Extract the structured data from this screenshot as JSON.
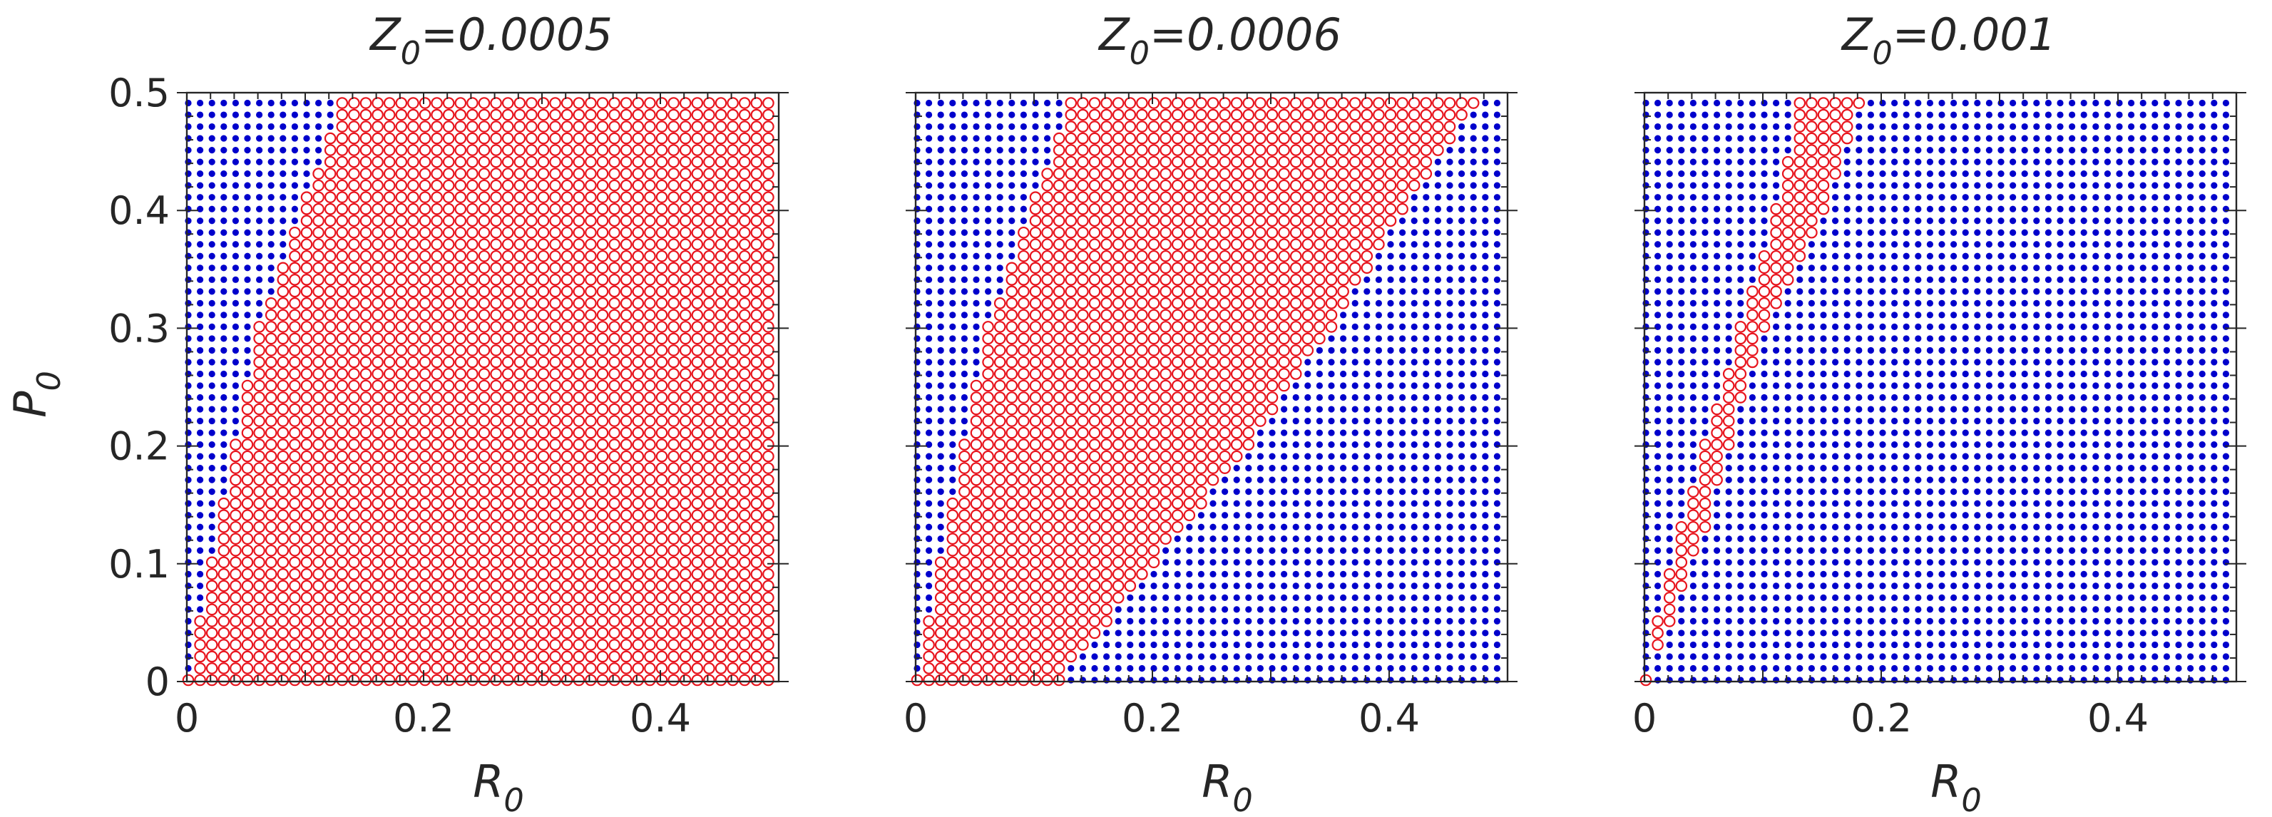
{
  "chart_data": [
    {
      "type": "scatter",
      "title": {
        "symbol": "Z",
        "subscript": "0",
        "rest": "=0.0005"
      },
      "xlabel": {
        "symbol": "R",
        "subscript": "0"
      },
      "ylabel": {
        "symbol": "P",
        "subscript": "0"
      },
      "xlim": [
        0,
        0.5
      ],
      "ylim": [
        0,
        0.5
      ],
      "xticks": [
        0,
        0.2,
        0.4
      ],
      "xtick_labels": [
        "0",
        "0.2",
        "0.4"
      ],
      "yticks": [
        0,
        0.1,
        0.2,
        0.3,
        0.4,
        0.5
      ],
      "ytick_labels": [
        "0",
        "0.1",
        "0.2",
        "0.3",
        "0.4",
        "0.5"
      ],
      "grid": false,
      "grid_step": 0.01,
      "series": [
        {
          "marker": "filled-dot",
          "color": "#0000cc",
          "region": "complement of red region"
        },
        {
          "marker": "open-circle",
          "color": "#e8141d",
          "region": "R0 >= 0.12*P0/0.5 + 0.01 (approx.)",
          "boundary_left": [
            [
              0,
              0.0
            ],
            [
              0.01,
              0.05
            ],
            [
              0.04,
              0.2
            ],
            [
              0.06,
              0.3
            ],
            [
              0.1,
              0.41
            ],
            [
              0.13,
              0.49
            ]
          ],
          "boundary_right": [
            [
              0.5,
              0.0
            ],
            [
              0.5,
              0.49
            ]
          ]
        }
      ]
    },
    {
      "type": "scatter",
      "title": {
        "symbol": "Z",
        "subscript": "0",
        "rest": "=0.0006"
      },
      "xlabel": {
        "symbol": "R",
        "subscript": "0"
      },
      "xlim": [
        0,
        0.5
      ],
      "ylim": [
        0,
        0.5
      ],
      "xticks": [
        0,
        0.2,
        0.4
      ],
      "xtick_labels": [
        "0",
        "0.2",
        "0.4"
      ],
      "grid": false,
      "grid_step": 0.01,
      "series": [
        {
          "marker": "filled-dot",
          "color": "#0000cc",
          "region": "complement of red region"
        },
        {
          "marker": "open-circle",
          "color": "#e8141d",
          "boundary_left": [
            [
              0,
              0.0
            ],
            [
              0.01,
              0.05
            ],
            [
              0.04,
              0.2
            ],
            [
              0.06,
              0.3
            ],
            [
              0.1,
              0.41
            ],
            [
              0.13,
              0.49
            ]
          ],
          "boundary_right": [
            [
              0.12,
              0.0
            ],
            [
              0.2,
              0.1
            ],
            [
              0.28,
              0.2
            ],
            [
              0.35,
              0.3
            ],
            [
              0.41,
              0.4
            ],
            [
              0.47,
              0.49
            ]
          ]
        }
      ]
    },
    {
      "type": "scatter",
      "title": {
        "symbol": "Z",
        "subscript": "0",
        "rest": "=0.001"
      },
      "xlabel": {
        "symbol": "R",
        "subscript": "0"
      },
      "xlim": [
        0,
        0.5
      ],
      "ylim": [
        0,
        0.5
      ],
      "xticks": [
        0,
        0.2,
        0.4
      ],
      "xtick_labels": [
        "0",
        "0.2",
        "0.4"
      ],
      "grid": false,
      "grid_step": 0.01,
      "series": [
        {
          "marker": "filled-dot",
          "color": "#0000cc",
          "region": "complement of red region"
        },
        {
          "marker": "open-circle",
          "color": "#e8141d",
          "boundary_left": [
            [
              0,
              0.0
            ],
            [
              0.01,
              0.05
            ],
            [
              0.03,
              0.13
            ],
            [
              0.05,
              0.2
            ],
            [
              0.08,
              0.3
            ],
            [
              0.11,
              0.4
            ],
            [
              0.13,
              0.49
            ]
          ],
          "boundary_right": [
            [
              0,
              0.0
            ],
            [
              0.02,
              0.05
            ],
            [
              0.05,
              0.13
            ],
            [
              0.07,
              0.2
            ],
            [
              0.1,
              0.3
            ],
            [
              0.15,
              0.4
            ],
            [
              0.18,
              0.49
            ]
          ]
        }
      ]
    }
  ]
}
